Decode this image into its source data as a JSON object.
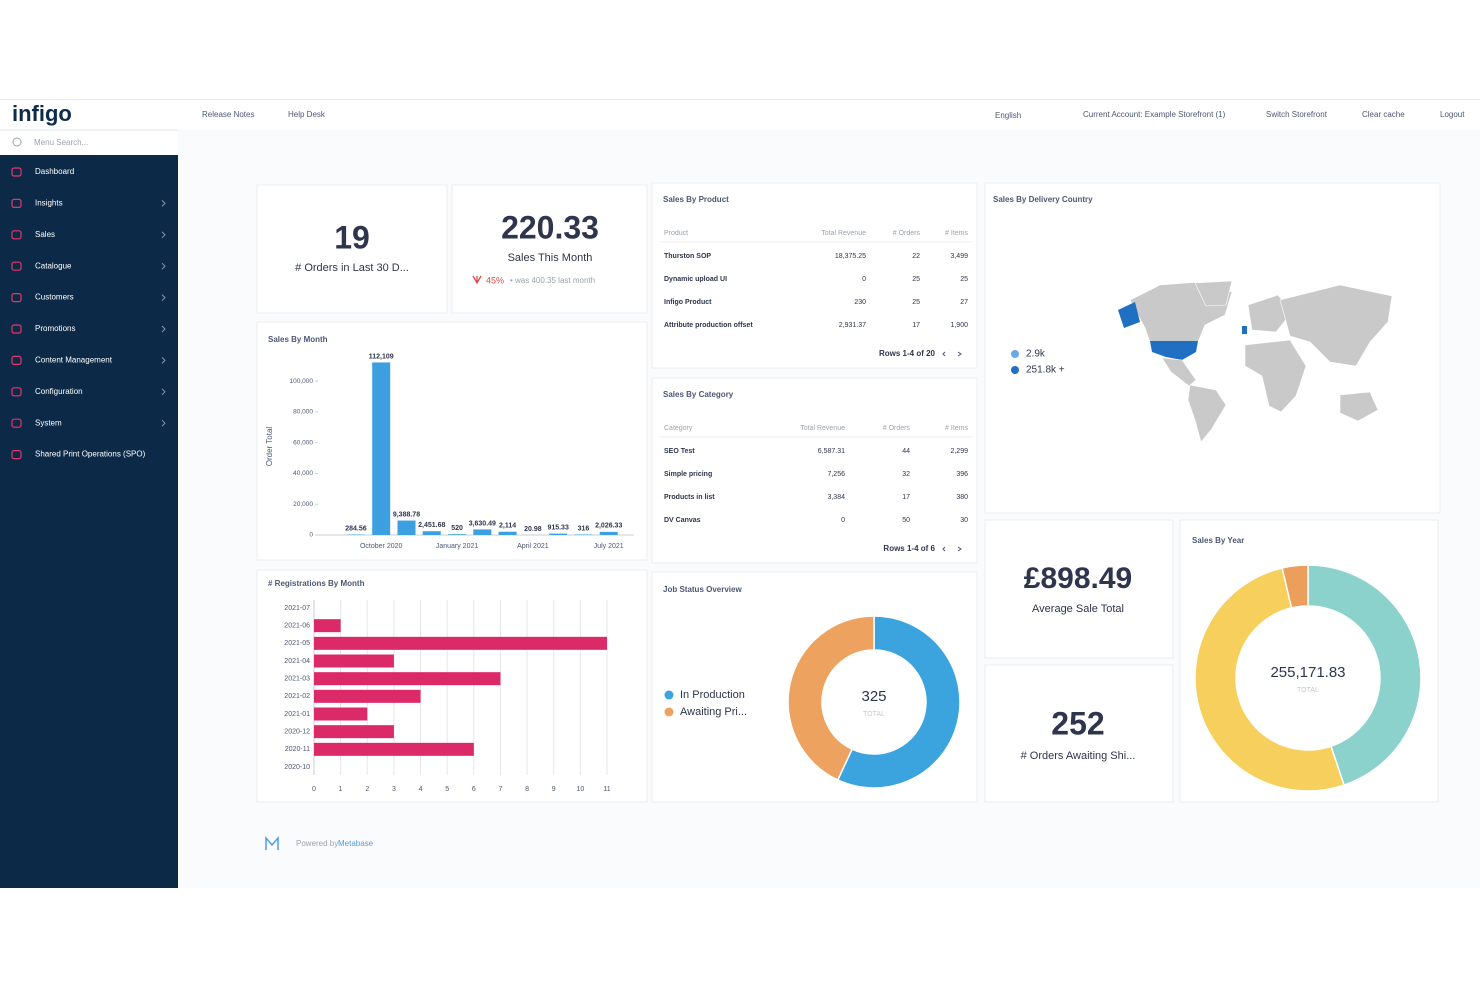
{
  "sidebar": {
    "logo": "infigo",
    "search": "Menu Search...",
    "menu": [
      "Dashboard",
      "Insights",
      "Sales",
      "Catalogue",
      "Customers",
      "Promotions",
      "Content Management",
      "Configuration",
      "System",
      "Shared Print Operations (SPO)"
    ]
  },
  "topbar": {
    "links": [
      "Release Notes",
      "Help Desk"
    ],
    "language": "English",
    "account": "Current Account: Example Storefront (1)",
    "actions": [
      "Switch Storefront",
      "Clear cache",
      "Logout"
    ]
  },
  "cards": {
    "orders_30d": {
      "value": 19,
      "label": "# Orders in Last 30 D..."
    },
    "sales_this_month": {
      "value": 220.33,
      "label": "Sales This Month",
      "change": "45%",
      "comparison": "• was 400.35 last month"
    },
    "average_sale": {
      "value": "£898.49",
      "label": "Average Sale Total"
    },
    "orders_awaiting": {
      "value": 252,
      "label": "# Orders Awaiting Shi..."
    }
  },
  "tables": [
    {
      "title": "Sales By Product",
      "columns": [
        "Product",
        "Total Revenue",
        "# Orders",
        "# Items"
      ],
      "rows": [
        [
          "Thurston SOP",
          "18,375.25",
          "22",
          "3,499"
        ],
        [
          "Dynamic upload UI",
          "0",
          "25",
          "25"
        ],
        [
          "Infigo Product",
          "230",
          "25",
          "27"
        ],
        [
          "Attribute production offset",
          "2,931.37",
          "17",
          "1,900"
        ]
      ],
      "footer": "Rows 1-4 of 20"
    },
    {
      "title": "Sales By Category",
      "columns": [
        "Category",
        "Total Revenue",
        "# Orders",
        "# Items"
      ],
      "rows": [
        [
          "SEO Test",
          "6,587.31",
          "44",
          "2,299"
        ],
        [
          "Simple pricing",
          "7,256",
          "32",
          "396"
        ],
        [
          "Products in list",
          "3,384",
          "17",
          "380"
        ],
        [
          "DV Canvas",
          "0",
          "50",
          "30"
        ]
      ],
      "footer": "Rows 1-4 of 6"
    }
  ],
  "map": {
    "title": "Sales By Delivery Country",
    "legend": [
      "2.9k",
      "251.8k +"
    ]
  },
  "footer": {
    "text": "Powered by",
    "link": "Metabase"
  },
  "chart_data": [
    {
      "type": "bar",
      "title": "Sales By Month",
      "y_label": "Order Total",
      "categories": [
        null,
        "October 2020",
        null,
        null,
        "January 2021",
        null,
        null,
        "April 2021",
        null,
        null,
        "July 2021"
      ],
      "values": [
        284.56,
        112109,
        9388.78,
        2451.68,
        520,
        3630.49,
        2114,
        20.98,
        915.33,
        316,
        2026.33
      ],
      "value_labels": [
        "284.56",
        "112,109",
        "9,388.78",
        "2,451.68",
        "520",
        "3,630.49",
        "2,114",
        "20.98",
        "915.33",
        "316",
        "2,026.33"
      ],
      "color": "#3c9fe0",
      "ylim": [
        0,
        115000
      ],
      "yticks": [
        0,
        {
          "value": 20000,
          "label": "20,000"
        },
        {
          "value": 40000,
          "label": "40,000"
        },
        {
          "value": 60000,
          "label": "60,000"
        },
        {
          "value": 80000,
          "label": "80,000"
        },
        {
          "value": 100000,
          "label": "100,000"
        }
      ]
    },
    {
      "type": "barh",
      "title": "# Registrations By Month",
      "categories": [
        "2021-07",
        "2021-06",
        "2021-05",
        "2021-04",
        "2021-03",
        "2021-02",
        "2021-01",
        "2020-12",
        "2020-11",
        "2020-10"
      ],
      "values": [
        0,
        1,
        11,
        3,
        7,
        4,
        2,
        3,
        6,
        0
      ],
      "color": "#dc2a68",
      "xlim": [
        0,
        11
      ],
      "xticks": [
        0,
        1,
        2,
        3,
        4,
        5,
        6,
        7,
        8,
        9,
        10,
        11
      ],
      "grid": true
    },
    {
      "type": "donut",
      "title": "Job Status Overview",
      "categories": [
        "In Production",
        "Awaiting Pri..."
      ],
      "values": [
        185,
        140
      ],
      "colors": [
        "#3ba3dd",
        "#eda35f"
      ],
      "total": 325,
      "total_label": "TOTAL"
    },
    {
      "type": "donut",
      "title": "Sales By Year",
      "values": [
        114400,
        131400,
        9371.83
      ],
      "colors": [
        "#8ad2cb",
        "#f7cf5d",
        "#ec9f5a"
      ],
      "total": {
        "value": 255171.83,
        "label": "255,171.83"
      },
      "total_label": "TOTAL"
    }
  ]
}
